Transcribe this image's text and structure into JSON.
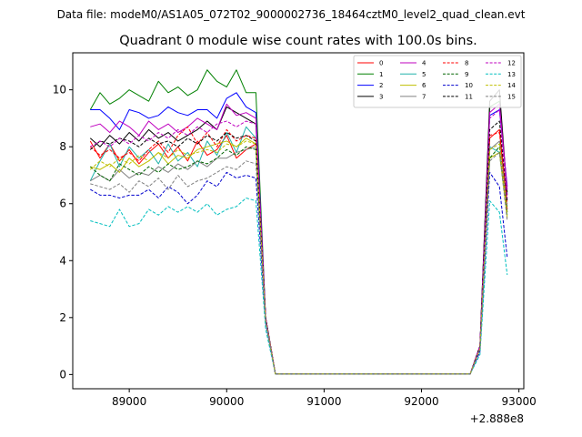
{
  "figure": {
    "suptitle": "Data file: modeM0/AS1A05_072T02_9000002736_18464cztM0_level2_quad_clean.evt"
  },
  "chart_data": {
    "type": "line",
    "title": "Quadrant 0 module wise count rates with 100.0s bins.",
    "xlabel": "",
    "ylabel": "",
    "offset_text": "+2.888e8",
    "offset_value": 288800000,
    "xlim": [
      88420,
      93050
    ],
    "ylim": [
      -0.5,
      11.3
    ],
    "x_ticks": [
      89000,
      90000,
      91000,
      92000,
      93000
    ],
    "x_tick_labels": [
      "89000",
      "90000",
      "91000",
      "92000",
      "93000"
    ],
    "y_ticks": [
      0,
      2,
      4,
      6,
      8,
      10
    ],
    "y_tick_labels": [
      "0",
      "2",
      "4",
      "6",
      "8",
      "10"
    ],
    "grid": false,
    "legend_position": "top-right",
    "legend_columns": 4,
    "x": [
      88600,
      88700,
      88800,
      88900,
      89000,
      89100,
      89200,
      89300,
      89400,
      89500,
      89600,
      89700,
      89800,
      89900,
      90000,
      90100,
      90200,
      90300,
      90400,
      90500,
      90600,
      90700,
      90800,
      90900,
      91000,
      91100,
      91200,
      91300,
      91400,
      91500,
      91600,
      91700,
      91800,
      91900,
      92000,
      92100,
      92200,
      92300,
      92400,
      92500,
      92600,
      92700,
      92800,
      92880
    ],
    "series": [
      {
        "name": "0",
        "color": "#ff0000",
        "dash": "solid",
        "values": [
          8.2,
          7.6,
          8.1,
          7.5,
          7.9,
          7.4,
          7.8,
          8.1,
          7.6,
          8.0,
          7.5,
          8.2,
          7.7,
          7.9,
          8.4,
          7.6,
          7.9,
          8.1,
          2.0,
          0.02,
          0.02,
          0.02,
          0.02,
          0.02,
          0.02,
          0.02,
          0.02,
          0.02,
          0.02,
          0.02,
          0.02,
          0.02,
          0.02,
          0.02,
          0.02,
          0.02,
          0.02,
          0.02,
          0.02,
          0.02,
          0.9,
          8.3,
          8.6,
          5.8
        ]
      },
      {
        "name": "1",
        "color": "#008000",
        "dash": "solid",
        "values": [
          9.3,
          9.9,
          9.5,
          9.7,
          10.0,
          9.8,
          9.6,
          10.3,
          9.9,
          10.1,
          9.8,
          10.0,
          10.7,
          10.3,
          10.1,
          10.7,
          9.9,
          9.9,
          2.0,
          0.02,
          0.02,
          0.02,
          0.02,
          0.02,
          0.02,
          0.02,
          0.02,
          0.02,
          0.02,
          0.02,
          0.02,
          0.02,
          0.02,
          0.02,
          0.02,
          0.02,
          0.02,
          0.02,
          0.02,
          0.02,
          1.0,
          9.4,
          9.6,
          6.4
        ]
      },
      {
        "name": "2",
        "color": "#0000ff",
        "dash": "solid",
        "values": [
          9.3,
          9.3,
          9.0,
          8.6,
          9.3,
          9.2,
          9.0,
          9.1,
          9.4,
          9.2,
          9.1,
          9.3,
          9.3,
          9.0,
          9.7,
          9.9,
          9.4,
          9.2,
          2.0,
          0.02,
          0.02,
          0.02,
          0.02,
          0.02,
          0.02,
          0.02,
          0.02,
          0.02,
          0.02,
          0.02,
          0.02,
          0.02,
          0.02,
          0.02,
          0.02,
          0.02,
          0.02,
          0.02,
          0.02,
          0.02,
          1.0,
          9.1,
          9.3,
          6.6
        ]
      },
      {
        "name": "3",
        "color": "#000000",
        "dash": "solid",
        "values": [
          8.3,
          8.0,
          8.4,
          8.1,
          8.5,
          8.2,
          8.6,
          8.3,
          8.5,
          8.2,
          8.4,
          8.6,
          8.9,
          8.6,
          9.4,
          9.2,
          9.0,
          8.8,
          2.0,
          0.02,
          0.02,
          0.02,
          0.02,
          0.02,
          0.02,
          0.02,
          0.02,
          0.02,
          0.02,
          0.02,
          0.02,
          0.02,
          0.02,
          0.02,
          0.02,
          0.02,
          0.02,
          0.02,
          0.02,
          0.02,
          1.0,
          9.6,
          10.0,
          6.3
        ]
      },
      {
        "name": "4",
        "color": "#bf00bf",
        "dash": "solid",
        "values": [
          8.7,
          8.8,
          8.5,
          8.9,
          8.7,
          8.4,
          8.9,
          8.6,
          8.8,
          8.5,
          8.7,
          9.0,
          8.8,
          8.6,
          9.5,
          9.1,
          9.2,
          9.0,
          2.0,
          0.02,
          0.02,
          0.02,
          0.02,
          0.02,
          0.02,
          0.02,
          0.02,
          0.02,
          0.02,
          0.02,
          0.02,
          0.02,
          0.02,
          0.02,
          0.02,
          0.02,
          0.02,
          0.02,
          0.02,
          0.02,
          1.0,
          9.2,
          9.5,
          6.5
        ]
      },
      {
        "name": "5",
        "color": "#20b2aa",
        "dash": "solid",
        "values": [
          6.8,
          7.5,
          8.1,
          7.3,
          8.0,
          7.6,
          7.9,
          7.4,
          8.1,
          7.5,
          7.8,
          7.3,
          8.2,
          7.7,
          8.5,
          7.8,
          8.7,
          8.3,
          1.9,
          0.02,
          0.02,
          0.02,
          0.02,
          0.02,
          0.02,
          0.02,
          0.02,
          0.02,
          0.02,
          0.02,
          0.02,
          0.02,
          0.02,
          0.02,
          0.02,
          0.02,
          0.02,
          0.02,
          0.02,
          0.02,
          0.9,
          8.0,
          7.8,
          5.6
        ]
      },
      {
        "name": "6",
        "color": "#bfbf00",
        "dash": "solid",
        "values": [
          7.3,
          7.2,
          7.4,
          7.1,
          7.6,
          7.3,
          7.5,
          7.8,
          7.4,
          7.7,
          7.6,
          7.9,
          8.0,
          8.1,
          8.2,
          8.0,
          8.3,
          8.1,
          1.9,
          0.02,
          0.02,
          0.02,
          0.02,
          0.02,
          0.02,
          0.02,
          0.02,
          0.02,
          0.02,
          0.02,
          0.02,
          0.02,
          0.02,
          0.02,
          0.02,
          0.02,
          0.02,
          0.02,
          0.02,
          0.02,
          0.9,
          7.6,
          7.8,
          5.5
        ]
      },
      {
        "name": "7",
        "color": "#808080",
        "dash": "solid",
        "values": [
          6.8,
          7.0,
          6.8,
          7.2,
          6.9,
          7.1,
          7.0,
          7.3,
          7.1,
          7.4,
          7.2,
          7.5,
          7.3,
          7.6,
          7.6,
          7.8,
          7.9,
          8.0,
          1.9,
          0.02,
          0.02,
          0.02,
          0.02,
          0.02,
          0.02,
          0.02,
          0.02,
          0.02,
          0.02,
          0.02,
          0.02,
          0.02,
          0.02,
          0.02,
          0.02,
          0.02,
          0.02,
          0.02,
          0.02,
          0.02,
          0.9,
          7.9,
          8.2,
          5.9
        ]
      },
      {
        "name": "8",
        "color": "#ff0000",
        "dash": "dashed",
        "values": [
          8.0,
          7.7,
          7.9,
          7.6,
          7.8,
          7.5,
          7.9,
          8.2,
          7.8,
          8.4,
          8.7,
          8.1,
          8.5,
          8.0,
          8.6,
          8.2,
          8.4,
          8.3,
          2.0,
          0.02,
          0.02,
          0.02,
          0.02,
          0.02,
          0.02,
          0.02,
          0.02,
          0.02,
          0.02,
          0.02,
          0.02,
          0.02,
          0.02,
          0.02,
          0.02,
          0.02,
          0.02,
          0.02,
          0.02,
          0.02,
          1.0,
          8.4,
          8.5,
          6.0
        ]
      },
      {
        "name": "9",
        "color": "#006400",
        "dash": "dashed",
        "values": [
          7.3,
          7.0,
          6.8,
          7.4,
          7.2,
          7.0,
          7.3,
          7.1,
          7.4,
          7.2,
          7.3,
          7.5,
          7.4,
          7.6,
          7.9,
          7.7,
          8.0,
          7.9,
          1.9,
          0.02,
          0.02,
          0.02,
          0.02,
          0.02,
          0.02,
          0.02,
          0.02,
          0.02,
          0.02,
          0.02,
          0.02,
          0.02,
          0.02,
          0.02,
          0.02,
          0.02,
          0.02,
          0.02,
          0.02,
          0.02,
          0.9,
          7.6,
          8.0,
          5.7
        ]
      },
      {
        "name": "10",
        "color": "#0000cd",
        "dash": "dashed",
        "values": [
          6.5,
          6.3,
          6.3,
          6.2,
          6.3,
          6.3,
          6.5,
          6.2,
          6.6,
          6.4,
          6.0,
          6.3,
          6.8,
          6.6,
          7.1,
          6.9,
          7.0,
          6.9,
          1.8,
          0.02,
          0.02,
          0.02,
          0.02,
          0.02,
          0.02,
          0.02,
          0.02,
          0.02,
          0.02,
          0.02,
          0.02,
          0.02,
          0.02,
          0.02,
          0.02,
          0.02,
          0.02,
          0.02,
          0.02,
          0.02,
          0.8,
          7.1,
          6.6,
          4.1
        ]
      },
      {
        "name": "11",
        "color": "#000000",
        "dash": "dashed",
        "values": [
          7.9,
          8.2,
          8.1,
          8.3,
          8.2,
          8.0,
          8.3,
          8.1,
          8.2,
          8.0,
          8.3,
          8.1,
          8.4,
          8.2,
          8.5,
          8.3,
          8.4,
          8.2,
          2.0,
          0.02,
          0.02,
          0.02,
          0.02,
          0.02,
          0.02,
          0.02,
          0.02,
          0.02,
          0.02,
          0.02,
          0.02,
          0.02,
          0.02,
          0.02,
          0.02,
          0.02,
          0.02,
          0.02,
          0.02,
          0.02,
          1.0,
          8.6,
          8.9,
          6.1
        ]
      },
      {
        "name": "12",
        "color": "#bf00bf",
        "dash": "dashed",
        "values": [
          8.0,
          8.2,
          8.0,
          8.3,
          8.1,
          8.4,
          8.2,
          8.5,
          8.3,
          8.6,
          8.4,
          8.7,
          8.5,
          8.8,
          8.9,
          8.7,
          8.9,
          8.8,
          2.0,
          0.02,
          0.02,
          0.02,
          0.02,
          0.02,
          0.02,
          0.02,
          0.02,
          0.02,
          0.02,
          0.02,
          0.02,
          0.02,
          0.02,
          0.02,
          0.02,
          0.02,
          0.02,
          0.02,
          0.02,
          0.02,
          1.0,
          9.0,
          9.3,
          6.2
        ]
      },
      {
        "name": "13",
        "color": "#00bfbf",
        "dash": "dashed",
        "values": [
          5.4,
          5.3,
          5.2,
          5.8,
          5.2,
          5.3,
          5.8,
          5.6,
          5.9,
          5.7,
          5.9,
          5.7,
          6.0,
          5.6,
          5.8,
          5.9,
          6.2,
          6.1,
          1.6,
          0.02,
          0.02,
          0.02,
          0.02,
          0.02,
          0.02,
          0.02,
          0.02,
          0.02,
          0.02,
          0.02,
          0.02,
          0.02,
          0.02,
          0.02,
          0.02,
          0.02,
          0.02,
          0.02,
          0.02,
          0.02,
          0.7,
          6.1,
          5.7,
          3.5
        ]
      },
      {
        "name": "14",
        "color": "#bfbf00",
        "dash": "dashed",
        "values": [
          7.2,
          7.5,
          7.3,
          7.6,
          7.4,
          7.7,
          7.5,
          7.8,
          7.6,
          7.9,
          7.7,
          7.8,
          7.9,
          7.8,
          8.1,
          8.0,
          8.2,
          8.1,
          1.9,
          0.02,
          0.02,
          0.02,
          0.02,
          0.02,
          0.02,
          0.02,
          0.02,
          0.02,
          0.02,
          0.02,
          0.02,
          0.02,
          0.02,
          0.02,
          0.02,
          0.02,
          0.02,
          0.02,
          0.02,
          0.02,
          0.9,
          7.9,
          8.1,
          5.6
        ]
      },
      {
        "name": "15",
        "color": "#808080",
        "dash": "dashed",
        "values": [
          6.7,
          6.6,
          6.5,
          6.7,
          6.4,
          6.8,
          6.6,
          6.9,
          6.5,
          7.0,
          6.6,
          6.8,
          6.9,
          7.1,
          7.3,
          7.2,
          7.5,
          7.4,
          1.9,
          0.02,
          0.02,
          0.02,
          0.02,
          0.02,
          0.02,
          0.02,
          0.02,
          0.02,
          0.02,
          0.02,
          0.02,
          0.02,
          0.02,
          0.02,
          0.02,
          0.02,
          0.02,
          0.02,
          0.02,
          0.02,
          0.9,
          7.5,
          7.8,
          5.4
        ]
      }
    ]
  }
}
